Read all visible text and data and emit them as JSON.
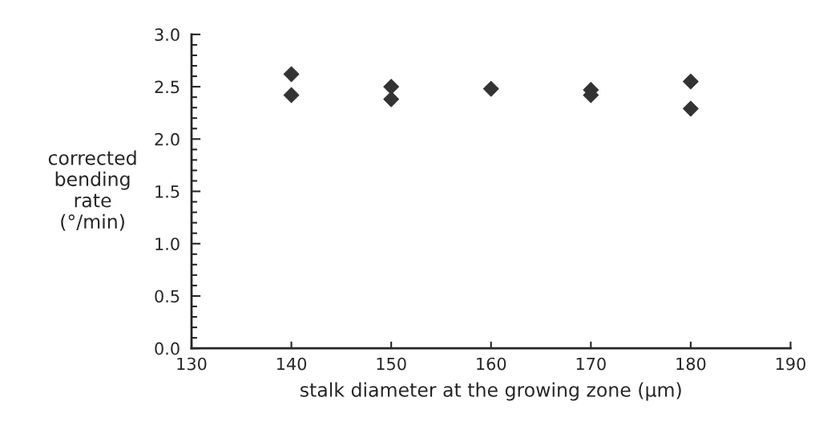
{
  "chart_data": {
    "type": "scatter",
    "xlabel": "stalk diameter at the growing zone (µm)",
    "ylabel": "corrected\nbending\nrate\n(°/min)",
    "x": [
      140,
      140,
      150,
      150,
      160,
      170,
      170,
      180,
      180
    ],
    "series": [
      {
        "color": "#333333",
        "values": [
          2.62,
          2.42,
          2.5,
          2.38,
          2.48,
          2.47,
          2.42,
          2.55,
          2.29
        ]
      }
    ],
    "marker": "diamond",
    "xlim": [
      130,
      190
    ],
    "ylim": [
      0,
      3
    ],
    "xticks": [
      130,
      140,
      150,
      160,
      170,
      180,
      190
    ],
    "yticks": [
      {
        "value": 0,
        "label": "0.0"
      },
      0.5,
      {
        "value": 1,
        "label": "1.0"
      },
      1.5,
      {
        "value": 2,
        "label": "2.0"
      },
      2.5,
      {
        "value": 3,
        "label": "3.0"
      }
    ],
    "grid": false,
    "legend": false
  }
}
